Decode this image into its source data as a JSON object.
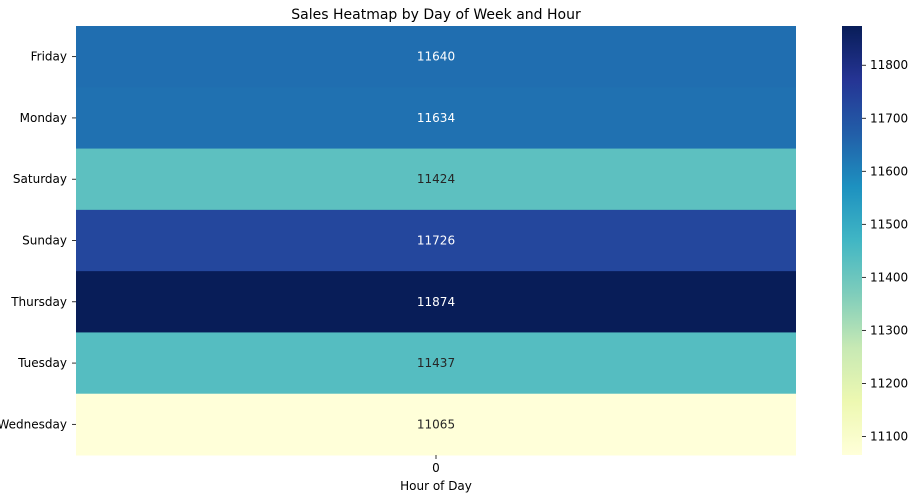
{
  "chart_data": {
    "type": "heatmap",
    "title": "Sales Heatmap by Day of Week and Hour",
    "xlabel": "Hour of Day",
    "ylabel": "",
    "x_categories": [
      "0"
    ],
    "y_categories": [
      "Friday",
      "Monday",
      "Saturday",
      "Sunday",
      "Thursday",
      "Tuesday",
      "Wednesday"
    ],
    "values": [
      [
        11640
      ],
      [
        11634
      ],
      [
        11424
      ],
      [
        11726
      ],
      [
        11874
      ],
      [
        11437
      ],
      [
        11065
      ]
    ],
    "colormap": "YlGnBu",
    "colorbar": {
      "range": [
        11065,
        11874
      ],
      "ticks": [
        11100,
        11200,
        11300,
        11400,
        11500,
        11600,
        11700,
        11800
      ]
    },
    "annotations": true
  }
}
